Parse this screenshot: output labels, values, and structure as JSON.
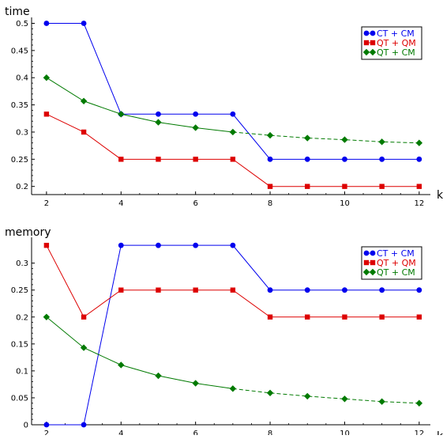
{
  "chart_data": [
    {
      "type": "line",
      "ylabel": "time",
      "xlabel": "k",
      "xlim": [
        1.6,
        12.3
      ],
      "ylim": [
        0.185,
        0.508
      ],
      "xticks": [
        2,
        4,
        6,
        8,
        10,
        12
      ],
      "xtick_labels": [
        "2",
        "4",
        "6",
        "8",
        "10",
        "12"
      ],
      "yticks": [
        0.2,
        0.25,
        0.3,
        0.35,
        0.4,
        0.45,
        0.5
      ],
      "ytick_labels": [
        "0.2",
        "0.25",
        "0.3",
        "0.35",
        "0.4",
        "0.45",
        "0.5"
      ],
      "legend": "top-right",
      "series": [
        {
          "name": "CT + CM",
          "color": "#0000ee",
          "marker": "circle",
          "x": [
            2,
            3,
            4,
            5,
            6,
            7,
            8,
            9,
            10,
            11,
            12
          ],
          "y": [
            0.5,
            0.5,
            0.333,
            0.333,
            0.333,
            0.333,
            0.25,
            0.25,
            0.25,
            0.25,
            0.25
          ],
          "dashed_from_x": null
        },
        {
          "name": "QT + QM",
          "color": "#dd0000",
          "marker": "square",
          "x": [
            2,
            3,
            4,
            5,
            6,
            7,
            8,
            9,
            10,
            11,
            12
          ],
          "y": [
            0.333,
            0.3,
            0.25,
            0.25,
            0.25,
            0.25,
            0.2,
            0.2,
            0.2,
            0.2,
            0.2
          ],
          "dashed_from_x": null
        },
        {
          "name": "QT + CM",
          "color": "#007a00",
          "marker": "diamond",
          "x": [
            2,
            3,
            4,
            5,
            6,
            7,
            8,
            9,
            10,
            11,
            12
          ],
          "y": [
            0.4,
            0.357,
            0.333,
            0.318,
            0.308,
            0.3,
            0.294,
            0.289,
            0.286,
            0.282,
            0.28
          ],
          "dashed_from_x": 7
        }
      ]
    },
    {
      "type": "line",
      "ylabel": "memory",
      "xlabel": "k",
      "xlim": [
        1.6,
        12.3
      ],
      "ylim": [
        0,
        0.345
      ],
      "xticks": [
        2,
        4,
        6,
        8,
        10,
        12
      ],
      "xtick_labels": [
        "2",
        "4",
        "6",
        "8",
        "10",
        "12"
      ],
      "yticks": [
        0,
        0.05,
        0.1,
        0.15,
        0.2,
        0.25,
        0.3
      ],
      "ytick_labels": [
        "0",
        "0.05",
        "0.1",
        "0.15",
        "0.2",
        "0.25",
        "0.3"
      ],
      "legend": "top-right",
      "series": [
        {
          "name": "CT + CM",
          "color": "#0000ee",
          "marker": "circle",
          "x": [
            2,
            3,
            4,
            5,
            6,
            7,
            8,
            9,
            10,
            11,
            12
          ],
          "y": [
            0,
            0,
            0.333,
            0.333,
            0.333,
            0.333,
            0.25,
            0.25,
            0.25,
            0.25,
            0.25
          ],
          "dashed_from_x": null
        },
        {
          "name": "QT + QM",
          "color": "#dd0000",
          "marker": "square",
          "x": [
            2,
            3,
            4,
            5,
            6,
            7,
            8,
            9,
            10,
            11,
            12
          ],
          "y": [
            0.333,
            0.2,
            0.25,
            0.25,
            0.25,
            0.25,
            0.2,
            0.2,
            0.2,
            0.2,
            0.2
          ],
          "dashed_from_x": null
        },
        {
          "name": "QT + CM",
          "color": "#007a00",
          "marker": "diamond",
          "x": [
            2,
            3,
            4,
            5,
            6,
            7,
            8,
            9,
            10,
            11,
            12
          ],
          "y": [
            0.2,
            0.143,
            0.111,
            0.091,
            0.077,
            0.067,
            0.059,
            0.053,
            0.048,
            0.043,
            0.04
          ],
          "dashed_from_x": 7
        }
      ]
    }
  ]
}
